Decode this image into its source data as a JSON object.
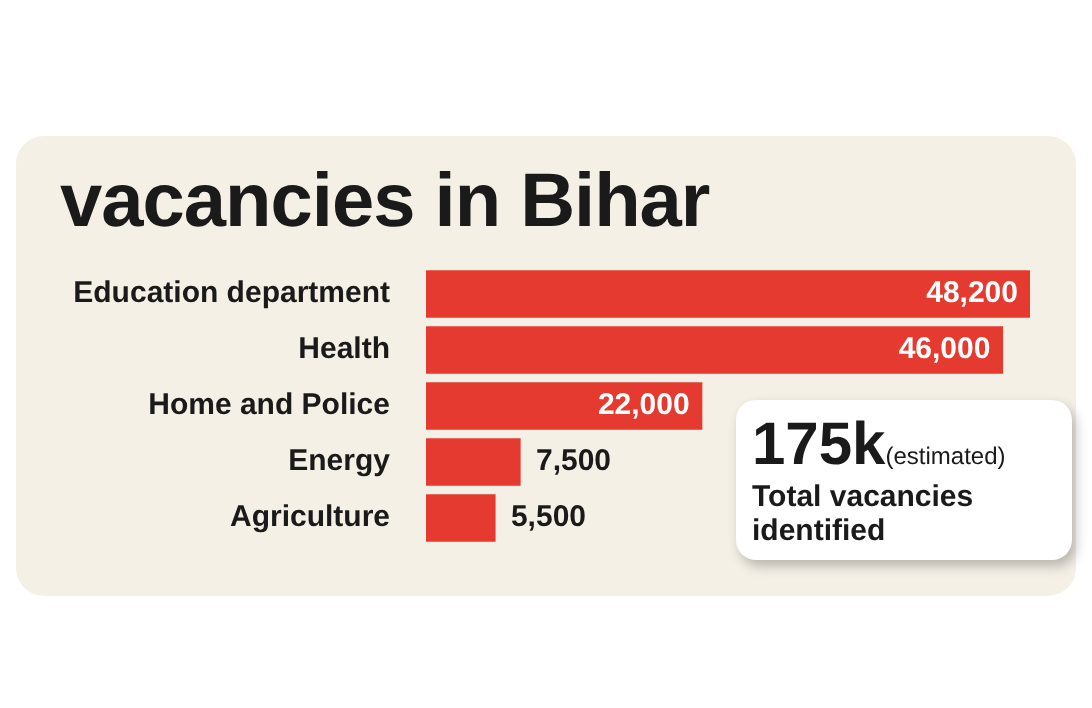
{
  "chart_data": {
    "type": "bar",
    "orientation": "horizontal",
    "title": "vacancies in Bihar",
    "categories": [
      "Education department",
      "Health",
      "Home and Police",
      "Energy",
      "Agriculture"
    ],
    "values": [
      48200,
      46000,
      22000,
      7500,
      5500
    ],
    "value_labels": [
      "48,200",
      "46,000",
      "22,000",
      "7,500",
      "5,500"
    ],
    "color": "#e53a2f",
    "tick_labels": "y",
    "legend": false,
    "annotations": [
      "175k",
      "(estimated)",
      "Total vacancies identified"
    ]
  }
}
